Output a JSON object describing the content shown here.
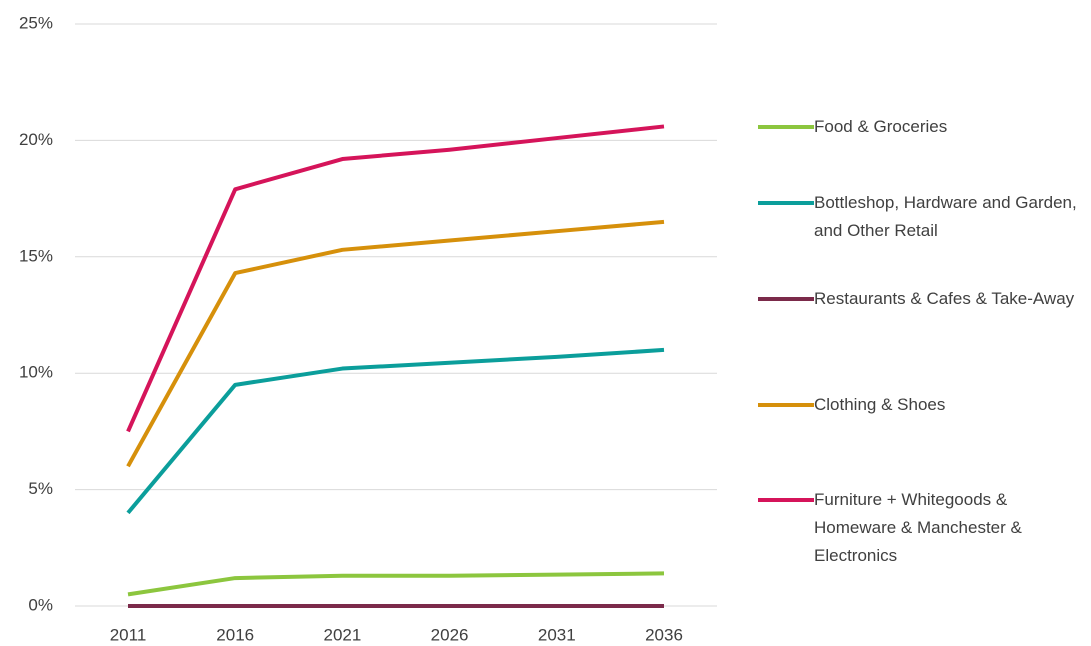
{
  "chart_data": {
    "type": "line",
    "categories": [
      "2011",
      "2016",
      "2021",
      "2026",
      "2031",
      "2036"
    ],
    "series": [
      {
        "name": "Food & Groceries",
        "color": "#8cc63e",
        "values": [
          0.5,
          1.2,
          1.3,
          1.3,
          1.35,
          1.4
        ]
      },
      {
        "name": "Bottleshop, Hardware and Garden, and Other Retail",
        "color": "#0b9e9b",
        "values": [
          4.0,
          9.5,
          10.2,
          10.45,
          10.7,
          11.0
        ]
      },
      {
        "name": "Restaurants & Cafes & Take-Away",
        "color": "#7b2a4a",
        "values": [
          0,
          0,
          0,
          0,
          0,
          0
        ]
      },
      {
        "name": "Clothing & Shoes",
        "color": "#d6900b",
        "values": [
          6.0,
          14.3,
          15.3,
          15.7,
          16.1,
          16.5
        ]
      },
      {
        "name": "Furniture + Whitegoods & Homeware & Manchester & Electronics",
        "color": "#d5145a",
        "values": [
          7.5,
          17.9,
          19.2,
          19.6,
          20.1,
          20.6
        ]
      }
    ],
    "ylim": [
      0,
      25
    ],
    "yticks": [
      {
        "value": 0,
        "label": "0%"
      },
      {
        "value": 5,
        "label": "5%"
      },
      {
        "value": 10,
        "label": "10%"
      },
      {
        "value": 15,
        "label": "15%"
      },
      {
        "value": 20,
        "label": "20%"
      },
      {
        "value": 25,
        "label": "25%"
      }
    ],
    "grid": true,
    "legend": "right"
  }
}
